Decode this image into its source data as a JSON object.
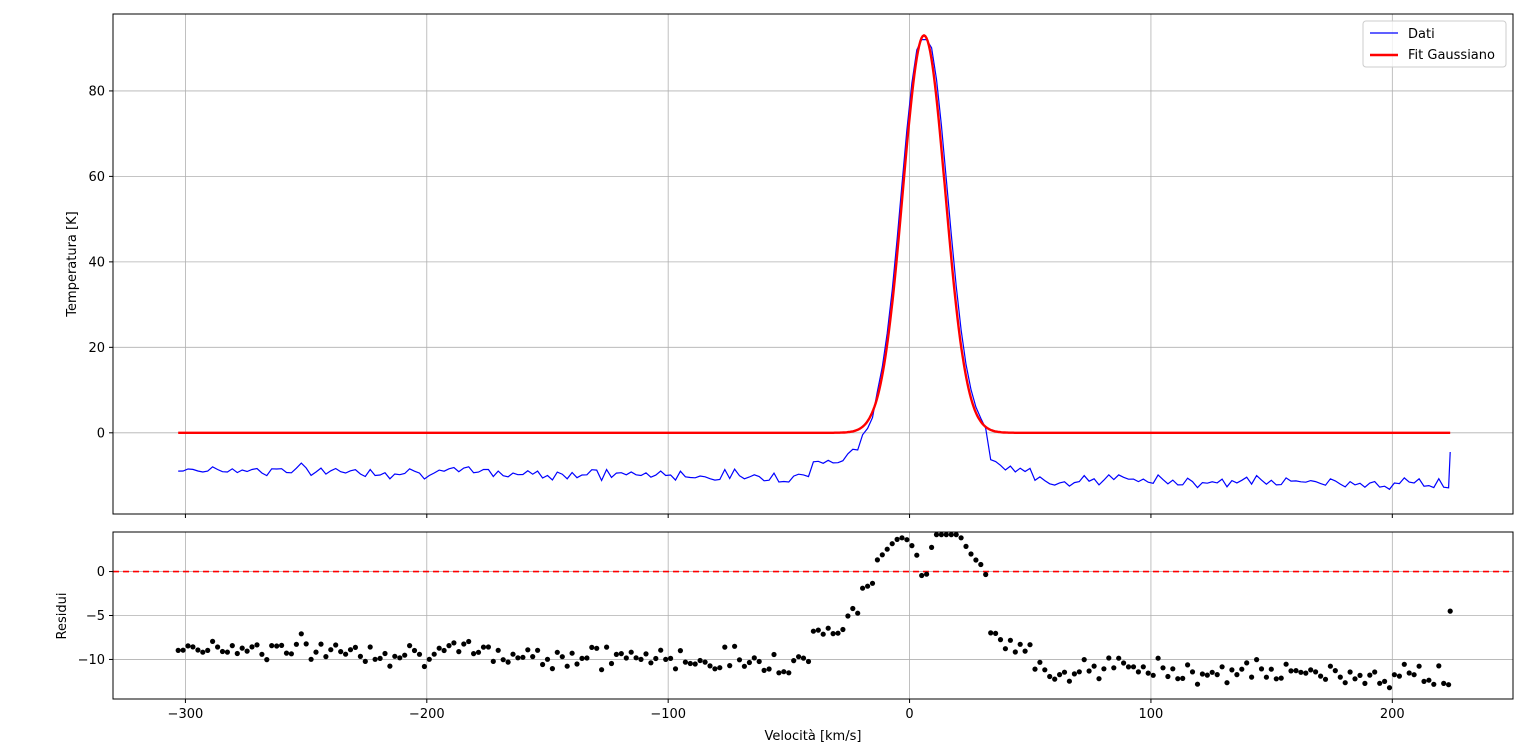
{
  "chart_data": [
    {
      "type": "line",
      "panel": "top",
      "xlabel": "",
      "ylabel": "Temperatura [K]",
      "xlim": [
        -330,
        250
      ],
      "ylim": [
        -19,
        98
      ],
      "x_ticks": [
        -300,
        -200,
        -100,
        0,
        100,
        200
      ],
      "y_ticks": [
        0,
        20,
        40,
        60,
        80
      ],
      "y_tick_labels": [
        "0",
        "20",
        "40",
        "60",
        "80"
      ],
      "grid": true,
      "legend_position": "top-right",
      "series": [
        {
          "name": "Dati",
          "color": "#0000ff",
          "style": "solid",
          "x_range": [
            -303,
            224
          ],
          "baseline_left": -8.5,
          "baseline_right": -12.0,
          "shoulder_left": [
            [
              -40,
              -6.5
            ],
            [
              -30,
              -6.8
            ],
            [
              -25,
              -4.0
            ],
            [
              -20,
              -3.5
            ],
            [
              -15,
              -1.5
            ]
          ],
          "shoulder_right": [
            [
              30,
              -4.0
            ],
            [
              35,
              -6.5
            ],
            [
              40,
              -8.5
            ],
            [
              50,
              -9.5
            ]
          ],
          "peak_position": 6,
          "peak_value": 92,
          "last_point": [
            224,
            -4.5
          ]
        },
        {
          "name": "Fit Gaussiano",
          "color": "#ff0000",
          "style": "solid",
          "x_range": [
            -303,
            224
          ],
          "amplitude": 93,
          "center": 6,
          "sigma": 8.8,
          "offset": 0
        }
      ]
    },
    {
      "type": "scatter",
      "panel": "bottom",
      "xlabel": "Velocità [km/s]",
      "ylabel": "Residui",
      "xlim": [
        -330,
        250
      ],
      "ylim": [
        -14.5,
        4.5
      ],
      "x_ticks": [
        -300,
        -200,
        -100,
        0,
        100,
        200
      ],
      "x_tick_labels": [
        "−300",
        "−200",
        "−100",
        "0",
        "100",
        "200"
      ],
      "y_ticks": [
        0,
        -5,
        -10
      ],
      "y_tick_labels": [
        "0",
        "−5",
        "−10"
      ],
      "grid": true,
      "reference_line": {
        "y": 0,
        "color": "#ff0000",
        "style": "dashed"
      },
      "series": [
        {
          "name": "",
          "color": "#000000",
          "marker": "circle",
          "derived_from": "Dati minus Fit Gaussiano"
        }
      ]
    }
  ]
}
